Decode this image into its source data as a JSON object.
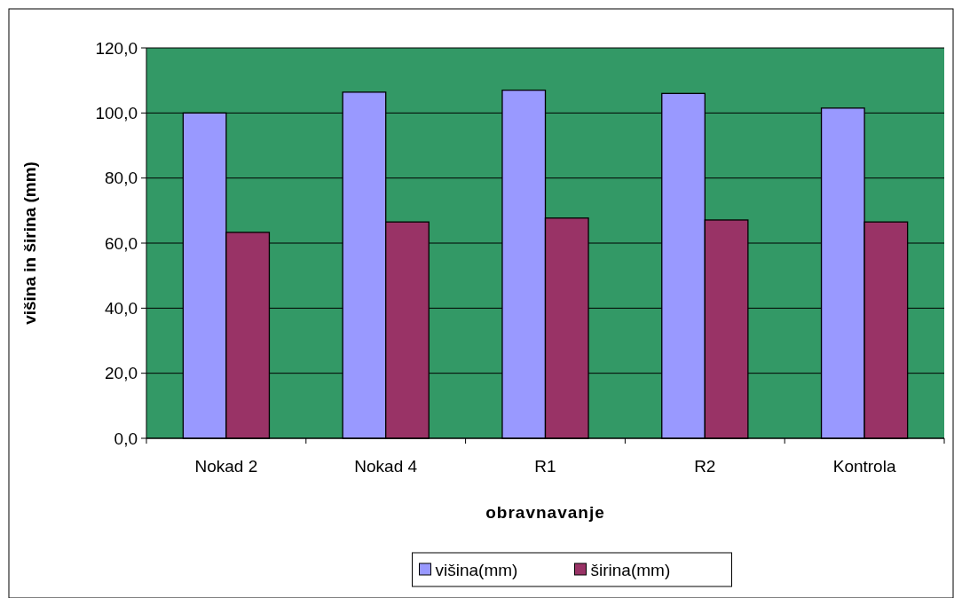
{
  "chart_data": {
    "type": "bar",
    "xlabel": "obravnavanje",
    "ylabel": "višina in širina (mm)",
    "categories": [
      "Nokad 2",
      "Nokad 4",
      "R1",
      "R2",
      "Kontrola"
    ],
    "series": [
      {
        "name": "višina(mm)",
        "color": "#9999ff",
        "values": [
          100.0,
          106.4,
          107.0,
          106.0,
          101.5
        ]
      },
      {
        "name": "širina(mm)",
        "color": "#993366",
        "values": [
          63.3,
          66.5,
          67.7,
          67.1,
          66.5
        ]
      }
    ],
    "ylim": [
      0,
      120
    ],
    "yticks": [
      {
        "value": 0,
        "label": "0,0"
      },
      {
        "value": 20,
        "label": "20,0"
      },
      {
        "value": 40,
        "label": "40,0"
      },
      {
        "value": 60,
        "label": "60,0"
      },
      {
        "value": 80,
        "label": "80,0"
      },
      {
        "value": 100,
        "label": "100,0"
      },
      {
        "value": 120,
        "label": "120,0"
      }
    ],
    "grid": "y",
    "legend": "bottom"
  }
}
